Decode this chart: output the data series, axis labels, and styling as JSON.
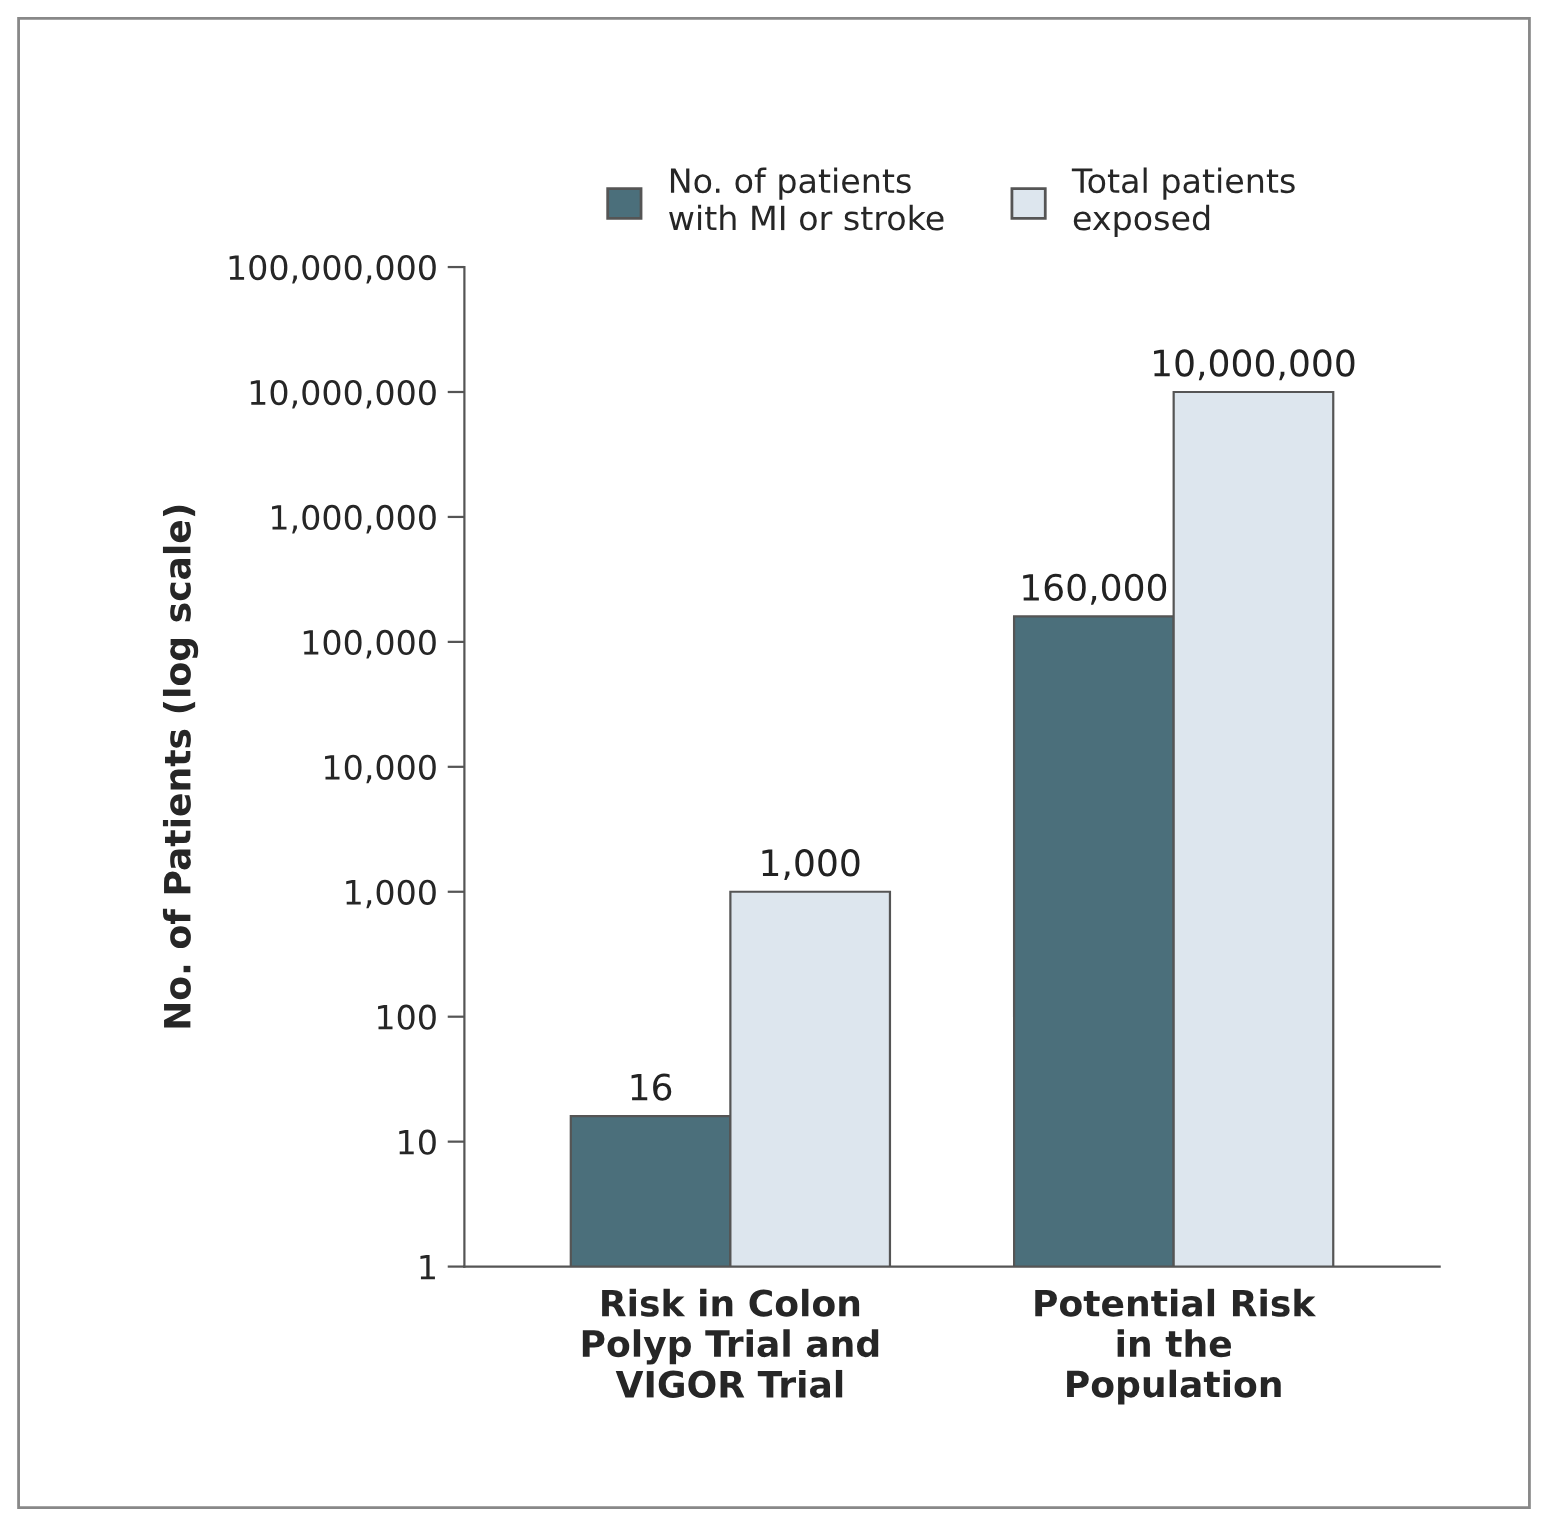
{
  "chart_data": {
    "type": "bar",
    "ylabel": "No. of Patients (log scale)",
    "categories": [
      "Risk in Colon\nPolyp Trial and\nVIGOR Trial",
      "Potential Risk\nin the\nPopulation"
    ],
    "series": [
      {
        "name": "No. of patients\nwith MI or stroke",
        "color": "#4b6f7b",
        "values": [
          16,
          160000
        ],
        "value_labels": [
          "16",
          "160,000"
        ]
      },
      {
        "name": "Total patients\nexposed",
        "color": "#dde6ee",
        "values": [
          1000,
          10000000
        ],
        "value_labels": [
          "1,000",
          "10,000,000"
        ]
      }
    ],
    "log": true,
    "ylim": [
      1,
      100000000
    ],
    "yticks": [
      1,
      10,
      100,
      {
        "value": 1000,
        "label": "1,000"
      },
      {
        "value": 10000,
        "label": "10,000"
      },
      {
        "value": 100000,
        "label": "100,000"
      },
      {
        "value": 1000000,
        "label": "1,000,000"
      },
      {
        "value": 10000000,
        "label": "10,000,000"
      },
      {
        "value": 100000000,
        "label": "100,000,000"
      }
    ],
    "grid": false,
    "legend": "top"
  }
}
